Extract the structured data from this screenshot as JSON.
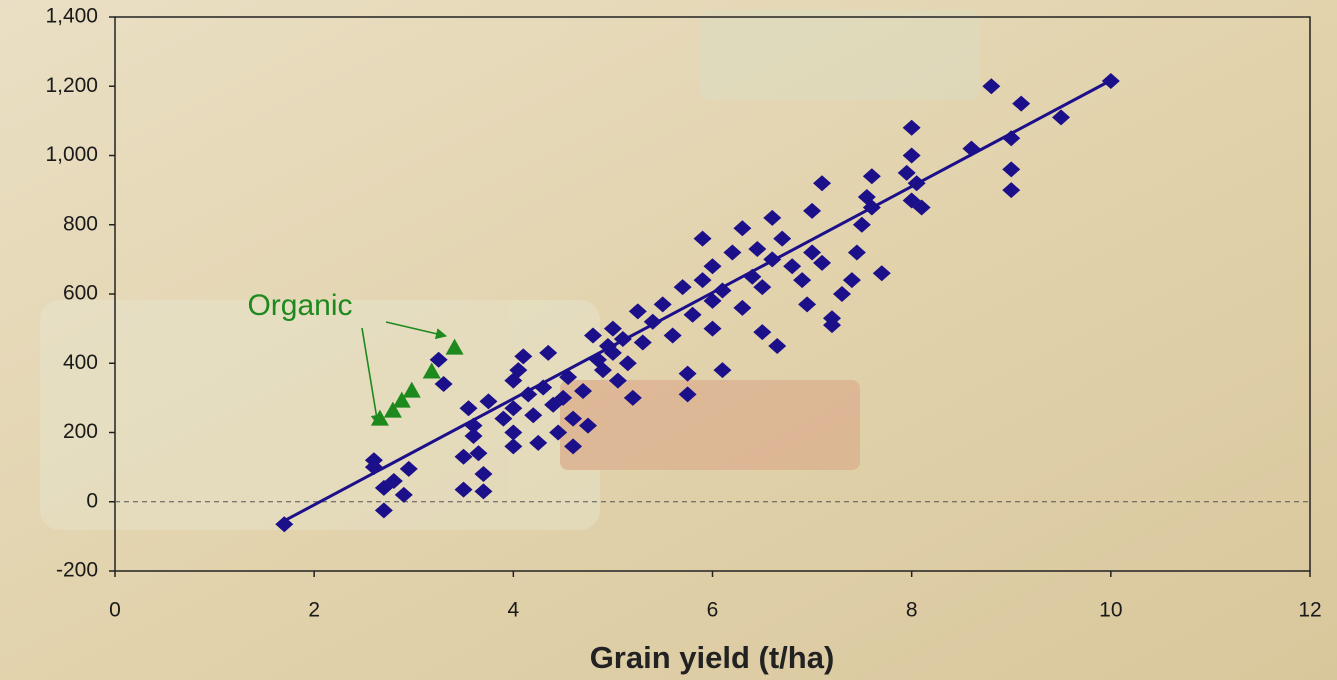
{
  "chart_data": {
    "type": "scatter",
    "x_label": "Grain yield (t/ha)",
    "annotation": "Organic",
    "xlim": [
      0,
      12
    ],
    "xticks": [
      0,
      2,
      4,
      6,
      8,
      10,
      12
    ],
    "ylim": [
      -200,
      1400
    ],
    "yticks": [
      -200,
      0,
      200,
      400,
      600,
      800,
      {
        "value": 1000,
        "label": "1,000"
      },
      {
        "value": 1200,
        "label": "1,200"
      },
      {
        "value": 1400,
        "label": "1,400"
      }
    ],
    "series": [
      {
        "color": "#1c0f8a",
        "marker": "diamond",
        "x": [
          1.7,
          2.6,
          2.6,
          2.7,
          2.7,
          2.8,
          2.9,
          2.95,
          3.25,
          3.3,
          3.5,
          3.5,
          3.55,
          3.6,
          3.6,
          3.65,
          3.7,
          3.7,
          3.75,
          3.9,
          4.0,
          4.0,
          4.0,
          4.0,
          4.05,
          4.1,
          4.15,
          4.2,
          4.25,
          4.3,
          4.35,
          4.4,
          4.45,
          4.5,
          4.55,
          4.6,
          4.6,
          4.7,
          4.75,
          4.8,
          4.85,
          4.9,
          4.95,
          5.0,
          5.0,
          5.05,
          5.1,
          5.15,
          5.2,
          5.25,
          5.3,
          5.4,
          5.5,
          5.6,
          5.7,
          5.75,
          5.75,
          5.8,
          5.9,
          5.9,
          6.0,
          6.0,
          6.0,
          6.1,
          6.1,
          6.2,
          6.3,
          6.3,
          6.4,
          6.45,
          6.5,
          6.5,
          6.6,
          6.6,
          6.65,
          6.7,
          6.8,
          6.9,
          6.95,
          7.0,
          7.0,
          7.1,
          7.1,
          7.2,
          7.2,
          7.3,
          7.4,
          7.45,
          7.5,
          7.55,
          7.6,
          7.6,
          7.7,
          7.95,
          8.0,
          8.0,
          8.0,
          8.05,
          8.1,
          8.6,
          8.8,
          9.0,
          9.0,
          9.0,
          9.1,
          9.5,
          10.0
        ],
        "values": [
          -65,
          100,
          120,
          40,
          -25,
          60,
          20,
          95,
          410,
          340,
          35,
          130,
          270,
          190,
          220,
          140,
          30,
          80,
          290,
          240,
          350,
          270,
          200,
          160,
          380,
          420,
          310,
          250,
          170,
          330,
          430,
          280,
          200,
          300,
          360,
          240,
          160,
          320,
          220,
          480,
          410,
          380,
          450,
          500,
          430,
          350,
          470,
          400,
          300,
          550,
          460,
          520,
          570,
          480,
          620,
          370,
          310,
          540,
          640,
          760,
          500,
          580,
          680,
          610,
          380,
          720,
          560,
          790,
          650,
          730,
          620,
          490,
          700,
          820,
          450,
          760,
          680,
          640,
          570,
          840,
          720,
          920,
          690,
          530,
          510,
          600,
          640,
          720,
          800,
          880,
          940,
          850,
          660,
          950,
          870,
          1080,
          1000,
          920,
          850,
          1020,
          1200,
          900,
          960,
          1050,
          1150,
          1110,
          1215
        ]
      },
      {
        "color": "#1e8a1e",
        "marker": "triangle",
        "x": [
          2.66,
          2.79,
          2.88,
          2.98,
          3.18,
          3.41
        ],
        "values": [
          240,
          263,
          292,
          321,
          376,
          445
        ]
      }
    ],
    "trendline": {
      "color": "#1c0f8a",
      "x": [
        1.7,
        10.0
      ],
      "values": [
        -55,
        1217
      ]
    }
  }
}
